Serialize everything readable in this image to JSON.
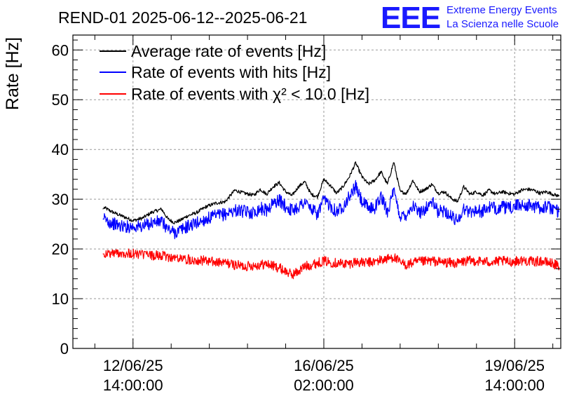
{
  "chart_data": {
    "type": "line",
    "title": "REND-01 2025-06-12--2025-06-21",
    "ylabel": "Rate [Hz]",
    "xlabel": "",
    "ylim": [
      0,
      63
    ],
    "yticks": [
      0,
      10,
      20,
      30,
      40,
      50,
      60
    ],
    "x_unit": "hours since 2025-06-12 14:00:00",
    "xlim": [
      -18.9,
      134.5
    ],
    "xticks": [
      {
        "x": 0,
        "date": "12/06/25",
        "time": "14:00:00"
      },
      {
        "x": 60,
        "date": "16/06/25",
        "time": "02:00:00"
      },
      {
        "x": 120,
        "date": "19/06/25",
        "time": "14:00:00"
      }
    ],
    "grid": true,
    "legend_position": "top-left",
    "logo": {
      "mark": "EEE",
      "line1": "Extreme Energy Events",
      "line2": "La Scienza nelle Scuole"
    },
    "series": [
      {
        "name": "Average rate of events [Hz]",
        "color": "#000000",
        "x": [
          -9.5,
          -9,
          -7,
          -5,
          -3,
          0,
          3,
          6,
          9,
          11,
          13,
          15,
          17,
          20,
          23,
          26,
          29,
          32,
          35,
          38,
          40,
          42,
          44,
          46,
          48,
          50,
          52,
          54,
          56,
          58,
          60,
          62,
          64,
          66,
          68,
          70,
          72,
          74,
          76,
          78,
          80,
          82,
          84,
          86,
          88,
          90,
          92,
          94,
          96,
          98,
          100,
          102,
          104,
          106,
          108,
          110,
          112,
          114,
          116,
          118,
          120,
          122,
          124,
          126,
          128,
          130,
          132,
          134
        ],
        "values": [
          28,
          28.3,
          27.6,
          27,
          26.5,
          25.7,
          26.2,
          27.4,
          28,
          26,
          25.3,
          25.8,
          26.6,
          27.3,
          28.5,
          29.2,
          29.5,
          31.8,
          31.2,
          30.8,
          32,
          31,
          32.5,
          33.3,
          31.5,
          30.7,
          32.5,
          33.5,
          31,
          30.5,
          34,
          32.8,
          31.2,
          32.5,
          34.5,
          37.3,
          34.5,
          33,
          33.8,
          35.5,
          33,
          37.5,
          31.5,
          31.2,
          33.8,
          31.5,
          32,
          33,
          31.2,
          31.5,
          30.2,
          29.5,
          32.5,
          31,
          31.5,
          30.8,
          31.8,
          31,
          31.5,
          31.2,
          31,
          31.8,
          32,
          31.8,
          31.2,
          31.5,
          31,
          30.6
        ]
      },
      {
        "name": "Rate of events with hits [Hz]",
        "color": "#0000ff",
        "x": [
          -9.5,
          -9,
          -7,
          -5,
          -3,
          0,
          3,
          6,
          9,
          11,
          13,
          15,
          17,
          20,
          23,
          26,
          29,
          32,
          35,
          38,
          40,
          42,
          44,
          46,
          48,
          50,
          52,
          54,
          56,
          58,
          60,
          62,
          64,
          66,
          68,
          70,
          72,
          74,
          76,
          78,
          80,
          82,
          84,
          86,
          88,
          90,
          92,
          94,
          96,
          98,
          100,
          102,
          104,
          106,
          108,
          110,
          112,
          114,
          116,
          118,
          120,
          122,
          124,
          126,
          128,
          130,
          132,
          134
        ],
        "values": [
          26,
          26,
          25.3,
          24.8,
          24.5,
          24.5,
          24.5,
          25.3,
          25.5,
          24,
          23.3,
          23.8,
          24.5,
          25.2,
          26,
          26.6,
          27,
          27.8,
          27.5,
          27.3,
          28.2,
          27.8,
          29.2,
          29.8,
          28.5,
          27.8,
          28.5,
          29.5,
          28,
          27,
          29.8,
          28.8,
          27.5,
          28.6,
          30.5,
          32.5,
          29.5,
          28.2,
          28.3,
          30.5,
          27.6,
          31.5,
          26.5,
          27,
          28.8,
          27.2,
          28.2,
          29.5,
          27.4,
          27.8,
          26.5,
          25.8,
          28,
          27.5,
          27.8,
          27.5,
          28.4,
          28.1,
          28.5,
          28.1,
          28.6,
          28.9,
          28.8,
          28.6,
          28.3,
          28.5,
          28.1,
          27.4
        ]
      },
      {
        "name": "Rate of events with χ² < 10.0 [Hz]",
        "color": "#ff0000",
        "x": [
          -9.5,
          -9,
          -7,
          -5,
          -3,
          0,
          3,
          6,
          9,
          11,
          13,
          15,
          17,
          20,
          23,
          26,
          29,
          32,
          35,
          38,
          40,
          42,
          44,
          46,
          48,
          50,
          52,
          54,
          56,
          58,
          60,
          62,
          64,
          66,
          68,
          70,
          72,
          74,
          76,
          78,
          80,
          82,
          84,
          86,
          88,
          90,
          92,
          94,
          96,
          98,
          100,
          102,
          104,
          106,
          108,
          110,
          112,
          114,
          116,
          118,
          120,
          122,
          124,
          126,
          128,
          130,
          132,
          134
        ],
        "values": [
          19,
          19,
          19.1,
          19.2,
          19.2,
          19,
          18.9,
          18.7,
          18.6,
          18.4,
          18.2,
          18,
          17.9,
          17.8,
          17.6,
          17.3,
          17.2,
          16.8,
          16.5,
          16.7,
          16.8,
          17,
          16.6,
          16.2,
          15.5,
          14.8,
          15.5,
          16.5,
          16.8,
          17.2,
          17.6,
          17.3,
          17.2,
          17.1,
          17,
          17.5,
          17.2,
          17.3,
          17.4,
          17.8,
          18,
          18.4,
          17.2,
          16.8,
          17.2,
          17.4,
          17.5,
          17.6,
          17.4,
          17.3,
          17.2,
          17.1,
          17.5,
          17.6,
          17.6,
          17.5,
          17.4,
          17.4,
          17.6,
          17.4,
          17.5,
          17.7,
          17.6,
          17.4,
          17.6,
          17.3,
          17.1,
          16.4
        ]
      }
    ]
  }
}
